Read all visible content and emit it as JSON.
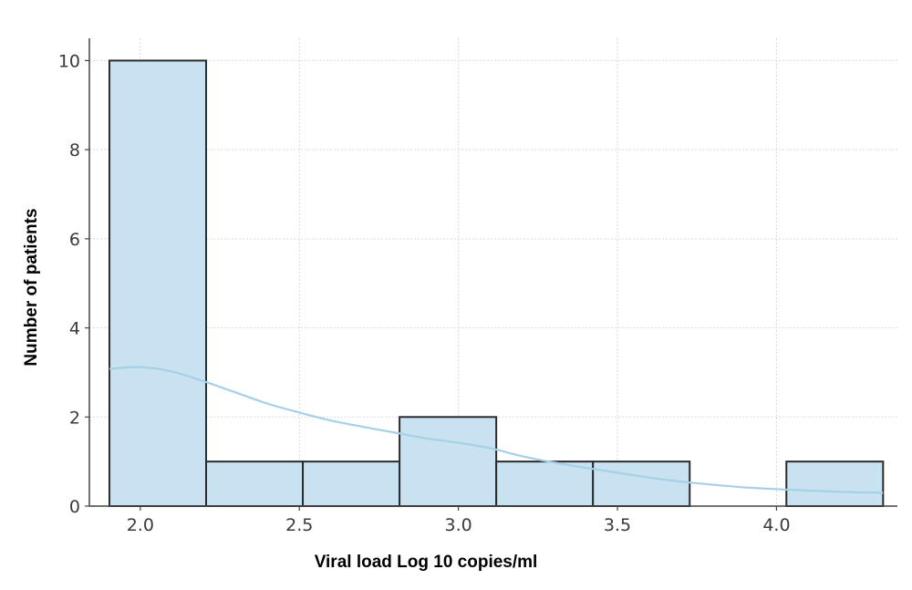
{
  "chart_data": {
    "type": "bar",
    "subtype": "histogram-with-kde",
    "title": "",
    "xlabel": "Viral load Log 10 copies/ml",
    "ylabel": "Number of patients",
    "xlim": [
      1.84,
      4.38
    ],
    "ylim": [
      0,
      10.5
    ],
    "xticks": [
      2.0,
      2.5,
      3.0,
      3.5,
      4.0
    ],
    "xtick_labels": [
      "2.0",
      "2.5",
      "3.0",
      "3.5",
      "4.0"
    ],
    "yticks": [
      0,
      2,
      4,
      6,
      8,
      10
    ],
    "ytick_labels": [
      "0",
      "2",
      "4",
      "6",
      "8",
      "10"
    ],
    "grid": true,
    "legend": "none",
    "bins": [
      {
        "x0": 1.903,
        "x1": 2.207,
        "count": 10
      },
      {
        "x0": 2.207,
        "x1": 2.511,
        "count": 1
      },
      {
        "x0": 2.511,
        "x1": 2.815,
        "count": 1
      },
      {
        "x0": 2.815,
        "x1": 3.119,
        "count": 2
      },
      {
        "x0": 3.119,
        "x1": 3.423,
        "count": 1
      },
      {
        "x0": 3.423,
        "x1": 3.727,
        "count": 1
      },
      {
        "x0": 3.727,
        "x1": 4.031,
        "count": 0
      },
      {
        "x0": 4.031,
        "x1": 4.335,
        "count": 1
      }
    ],
    "kde": {
      "x": [
        1.903,
        2.0,
        2.1,
        2.2,
        2.3,
        2.4,
        2.5,
        2.6,
        2.7,
        2.8,
        2.9,
        3.0,
        3.1,
        3.2,
        3.3,
        3.4,
        3.5,
        3.6,
        3.7,
        3.8,
        3.9,
        4.0,
        4.1,
        4.2,
        4.335
      ],
      "y": [
        3.08,
        3.12,
        3.02,
        2.8,
        2.55,
        2.3,
        2.1,
        1.92,
        1.78,
        1.65,
        1.52,
        1.42,
        1.3,
        1.12,
        0.98,
        0.86,
        0.75,
        0.64,
        0.55,
        0.48,
        0.42,
        0.38,
        0.35,
        0.32,
        0.3
      ]
    },
    "colors": {
      "bar_fill": "#c9e2f1",
      "bar_edge": "#2b2b2b",
      "kde_line": "#a6d0e8",
      "grid": "#d9d9d9",
      "axis": "#444444"
    }
  }
}
